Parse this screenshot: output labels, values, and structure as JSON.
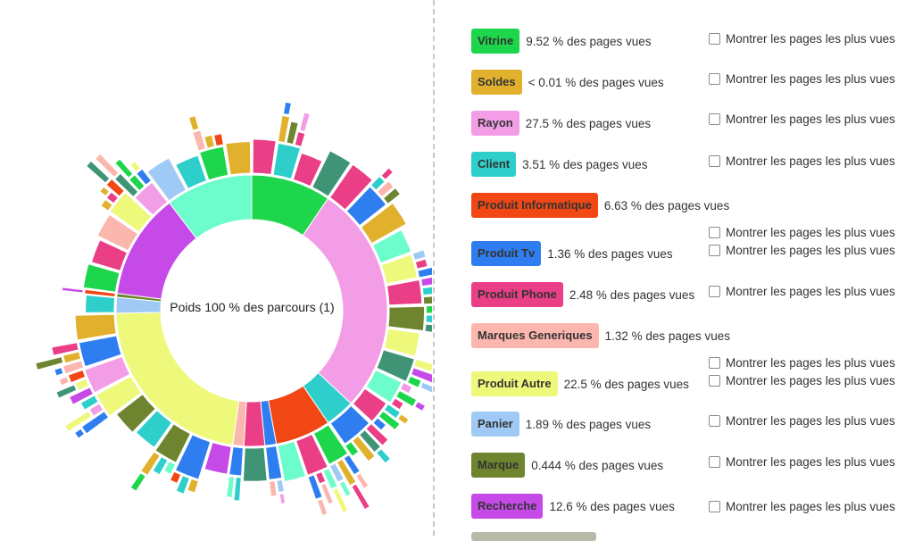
{
  "chart_data": {
    "type": "sunburst",
    "center_label": "Poids 100 % des parcours (1)",
    "inner_ring": [
      {
        "category": "Vitrine",
        "value": 9.52
      },
      {
        "category": "Rayon",
        "value": 27.5
      },
      {
        "category": "Client",
        "value": 3.51
      },
      {
        "category": "Produit Informatique",
        "value": 6.63
      },
      {
        "category": "Produit Tv",
        "value": 1.36
      },
      {
        "category": "Produit Phone",
        "value": 2.48
      },
      {
        "category": "Marques Generiques",
        "value": 1.32
      },
      {
        "category": "Produit Autre",
        "value": 22.5
      },
      {
        "category": "Panier",
        "value": 1.89
      },
      {
        "category": "Marque",
        "value": 0.444
      },
      {
        "category": "Recherche",
        "value": 12.6
      },
      {
        "category": "Client",
        "value": 10.4
      }
    ],
    "categories": [
      {
        "name": "Vitrine",
        "percent": "9.52 % des pages vues",
        "color": "#1ed64b"
      },
      {
        "name": "Soldes",
        "percent": "< 0.01 % des pages vues",
        "color": "#e1b12e"
      },
      {
        "name": "Rayon",
        "percent": "27.5 % des pages vues",
        "color": "#f39de6"
      },
      {
        "name": "Client",
        "percent": "3.51 % des pages vues",
        "color": "#2ecfcb"
      },
      {
        "name": "Produit Informatique",
        "percent": "6.63 % des pages vues",
        "color": "#f04714"
      },
      {
        "name": "Produit Tv",
        "percent": "1.36 % des pages vues",
        "color": "#2f7ef0"
      },
      {
        "name": "Produit Phone",
        "percent": "2.48 % des pages vues",
        "color": "#ea3e86"
      },
      {
        "name": "Marques Generiques",
        "percent": "1.32 % des pages vues",
        "color": "#fbb6ad"
      },
      {
        "name": "Produit Autre",
        "percent": "22.5 % des pages vues",
        "color": "#eef87a"
      },
      {
        "name": "Panier",
        "percent": "1.89 % des pages vues",
        "color": "#9fcaf6"
      },
      {
        "name": "Marque",
        "percent": "0.444 % des pages vues",
        "color": "#6e842e"
      },
      {
        "name": "Recherche",
        "percent": "12.6 % des pages vues",
        "color": "#c64ae8"
      }
    ],
    "extra_colors": {
      "client_alt": "#6dfccc",
      "dark_green": "#3e9475",
      "grey": "#b9b9a9",
      "brown": "#8a6e42"
    }
  },
  "legend": {
    "show_label": "Montrer les pages les plus vues"
  }
}
